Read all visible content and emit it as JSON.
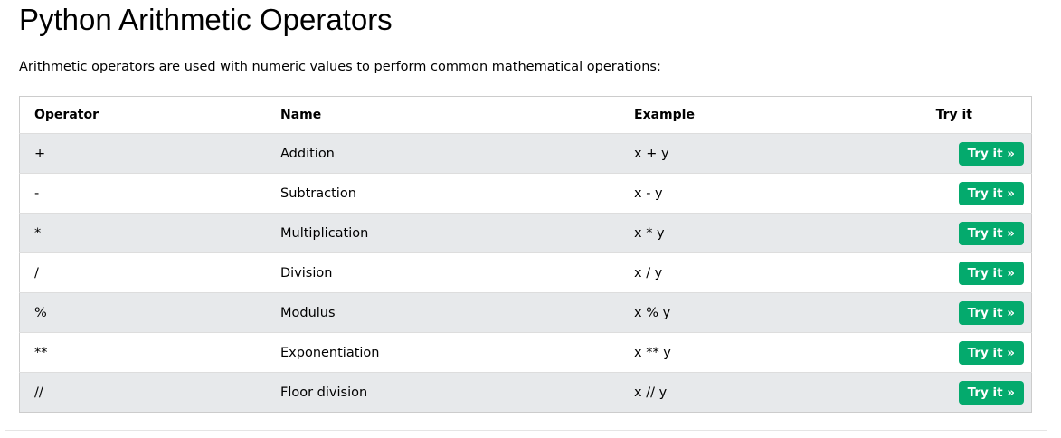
{
  "title": "Python Arithmetic Operators",
  "intro": "Arithmetic operators are used with numeric values to perform common mathematical operations:",
  "headers": [
    "Operator",
    "Name",
    "Example",
    "Try it"
  ],
  "rows": [
    {
      "op": "+",
      "name": "Addition",
      "example": "x + y",
      "button": "Try it »"
    },
    {
      "op": "-",
      "name": "Subtraction",
      "example": "x - y",
      "button": "Try it »"
    },
    {
      "op": "*",
      "name": "Multiplication",
      "example": "x * y",
      "button": "Try it »"
    },
    {
      "op": "/",
      "name": "Division",
      "example": "x / y",
      "button": "Try it »"
    },
    {
      "op": "%",
      "name": "Modulus",
      "example": "x % y",
      "button": "Try it »"
    },
    {
      "op": "**",
      "name": "Exponentiation",
      "example": "x ** y",
      "button": "Try it »"
    },
    {
      "op": "//",
      "name": "Floor division",
      "example": "x // y",
      "button": "Try it »"
    }
  ],
  "colors": {
    "button": "#04aa6d",
    "stripe": "#e7e9eb"
  }
}
